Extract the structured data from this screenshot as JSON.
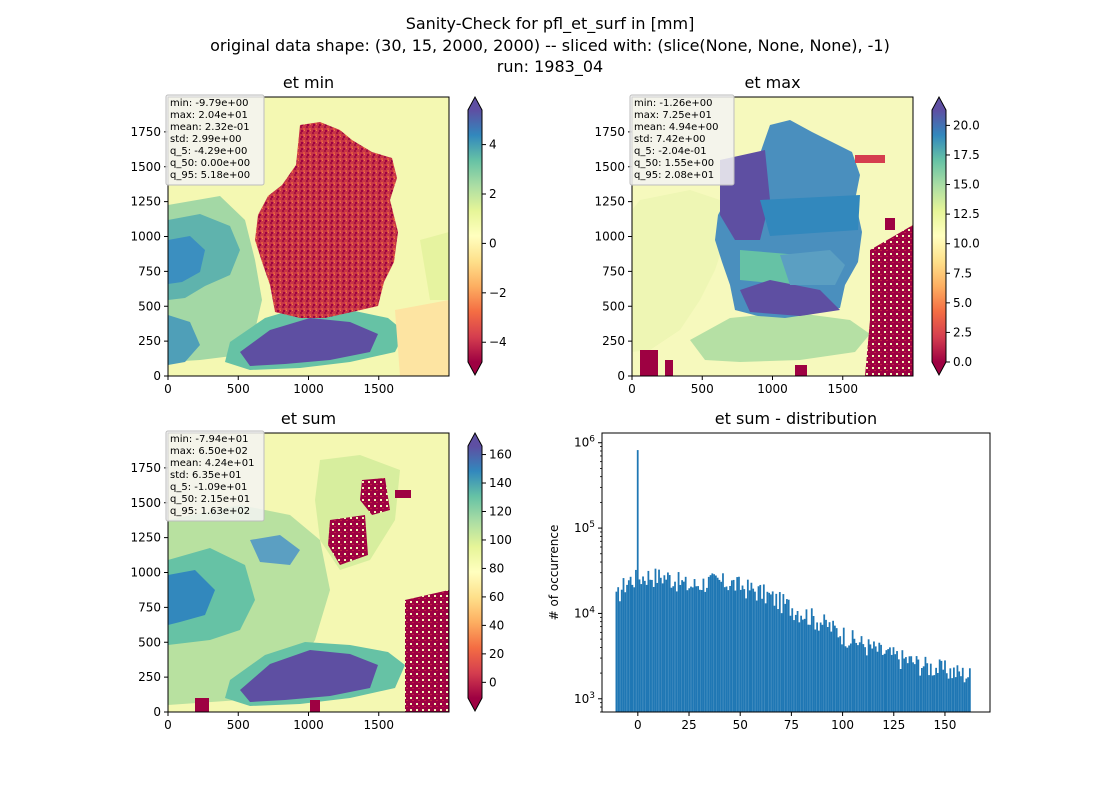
{
  "figure": {
    "suptitle_lines": [
      "Sanity-Check for pfl_et_surf in [mm]",
      "original data shape: (30, 15, 2000, 2000) -- sliced with: (slice(None, None, None), -1)",
      "run: 1983_04"
    ]
  },
  "chart_data": [
    {
      "type": "heatmap",
      "id": "et-min",
      "title": "et min",
      "xlim": [
        0,
        2000
      ],
      "ylim": [
        0,
        2000
      ],
      "x_ticks": [
        0,
        500,
        1000,
        1500
      ],
      "y_ticks": [
        0,
        250,
        500,
        750,
        1000,
        1250,
        1500,
        1750
      ],
      "colormap": "Spectral",
      "colorbar": {
        "vmin": -4.8,
        "vmax": 5.4,
        "ticks": [
          -4,
          -2,
          0,
          2,
          4
        ],
        "extend": "both"
      },
      "stats": [
        "min: -9.79e+00",
        "max: 2.04e+01",
        "mean: 2.32e-01",
        "std: 2.99e+00",
        "q_5: -4.29e+00",
        "q_50: 0.00e+00",
        "q_95: 5.18e+00"
      ]
    },
    {
      "type": "heatmap",
      "id": "et-max",
      "title": "et max",
      "xlim": [
        0,
        2000
      ],
      "ylim": [
        0,
        2000
      ],
      "x_ticks": [
        0,
        500,
        1000,
        1500
      ],
      "y_ticks": [
        0,
        250,
        500,
        750,
        1000,
        1250,
        1500,
        1750
      ],
      "colormap": "Spectral",
      "colorbar": {
        "vmin": 0,
        "vmax": 21.3,
        "ticks": [
          0.0,
          2.5,
          5.0,
          7.5,
          10.0,
          12.5,
          15.0,
          17.5,
          20.0
        ],
        "extend": "both"
      },
      "stats": [
        "min: -1.26e+00",
        "max: 7.25e+01",
        "mean: 4.94e+00",
        "std: 7.42e+00",
        "q_5: -2.04e-01",
        "q_50: 1.55e+00",
        "q_95: 2.08e+01"
      ]
    },
    {
      "type": "heatmap",
      "id": "et-sum",
      "title": "et sum",
      "xlim": [
        0,
        2000
      ],
      "ylim": [
        0,
        2000
      ],
      "x_ticks": [
        0,
        500,
        1000,
        1500
      ],
      "y_ticks": [
        0,
        250,
        500,
        750,
        1000,
        1250,
        1500,
        1750
      ],
      "colormap": "Spectral",
      "colorbar": {
        "vmin": -11,
        "vmax": 166,
        "ticks": [
          0,
          20,
          40,
          60,
          80,
          100,
          120,
          140,
          160
        ],
        "extend": "both"
      },
      "stats": [
        "min: -7.94e+01",
        "max: 6.50e+02",
        "mean: 4.24e+01",
        "std: 6.35e+01",
        "q_5: -1.09e+01",
        "q_50: 2.15e+01",
        "q_95: 1.63e+02"
      ]
    },
    {
      "type": "bar",
      "id": "et-sum-distribution",
      "title": "et sum - distribution",
      "ylabel": "# of occurrence",
      "xlabel": "",
      "y_scale": "log",
      "xlim": [
        -17.5,
        172
      ],
      "ylim": [
        700,
        1300000
      ],
      "x_ticks": [
        0,
        25,
        50,
        75,
        100,
        125,
        150
      ],
      "y_ticks": [
        {
          "value": 1000,
          "base": "10",
          "exp": "3"
        },
        {
          "value": 10000,
          "base": "10",
          "exp": "4"
        },
        {
          "value": 100000,
          "base": "10",
          "exp": "5"
        },
        {
          "value": 1000000,
          "base": "10",
          "exp": "6"
        }
      ],
      "bar_color": "#1f77b4",
      "bin_range": [
        -10.9,
        162.6
      ],
      "bin_count": 200,
      "peak": {
        "x": 0,
        "count": 820000
      },
      "profile": [
        {
          "x": -10.9,
          "count": 14000
        },
        {
          "x": -8,
          "count": 20000
        },
        {
          "x": -4,
          "count": 25000
        },
        {
          "x": 5,
          "count": 28000
        },
        {
          "x": 15,
          "count": 27000
        },
        {
          "x": 25,
          "count": 21000
        },
        {
          "x": 35,
          "count": 24000
        },
        {
          "x": 45,
          "count": 23000
        },
        {
          "x": 60,
          "count": 18000
        },
        {
          "x": 75,
          "count": 12000
        },
        {
          "x": 90,
          "count": 8000
        },
        {
          "x": 105,
          "count": 5000
        },
        {
          "x": 120,
          "count": 3500
        },
        {
          "x": 140,
          "count": 2500
        },
        {
          "x": 162.6,
          "count": 1900
        }
      ]
    }
  ]
}
